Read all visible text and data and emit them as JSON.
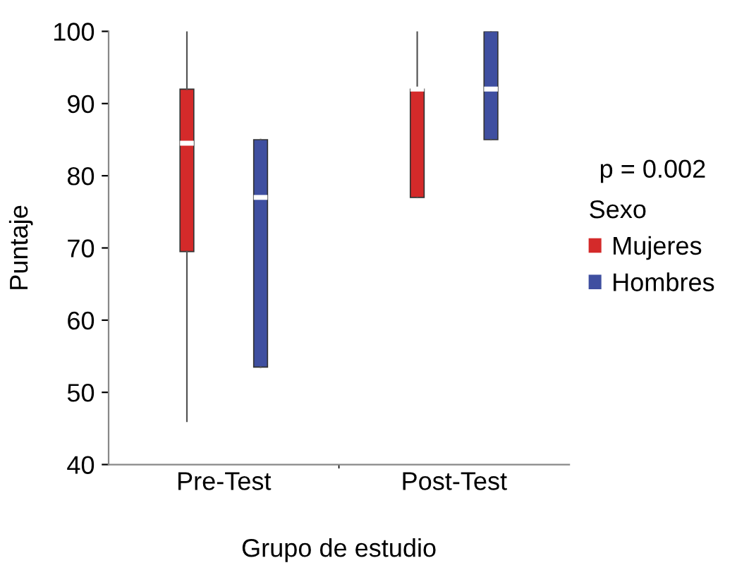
{
  "chart_data": {
    "type": "box",
    "xlabel": "Grupo de estudio",
    "ylabel": "Puntaje",
    "legend_title": "Sexo",
    "legend": "right",
    "grid": false,
    "categories": [
      "Pre-Test",
      "Post-Test"
    ],
    "ylim": [
      40,
      100
    ],
    "yticks": [
      40,
      50,
      60,
      70,
      80,
      90,
      100
    ],
    "series": [
      {
        "name": "Mujeres",
        "color": "#d42a2a",
        "boxes": [
          {
            "low": 46,
            "q1": 69.5,
            "median": 84.5,
            "q3": 92,
            "high": 100
          },
          {
            "low": 77,
            "q1": 77,
            "median": 92,
            "q3": 92,
            "high": 100
          }
        ]
      },
      {
        "name": "Hombres",
        "color": "#3f4fa0",
        "boxes": [
          {
            "low": 53.5,
            "q1": 53.5,
            "median": 77,
            "q3": 85,
            "high": 85
          },
          {
            "low": 85,
            "q1": 85,
            "median": 92,
            "q3": 100,
            "high": 100
          }
        ]
      }
    ],
    "annotations": [
      "p = 0.002"
    ]
  }
}
